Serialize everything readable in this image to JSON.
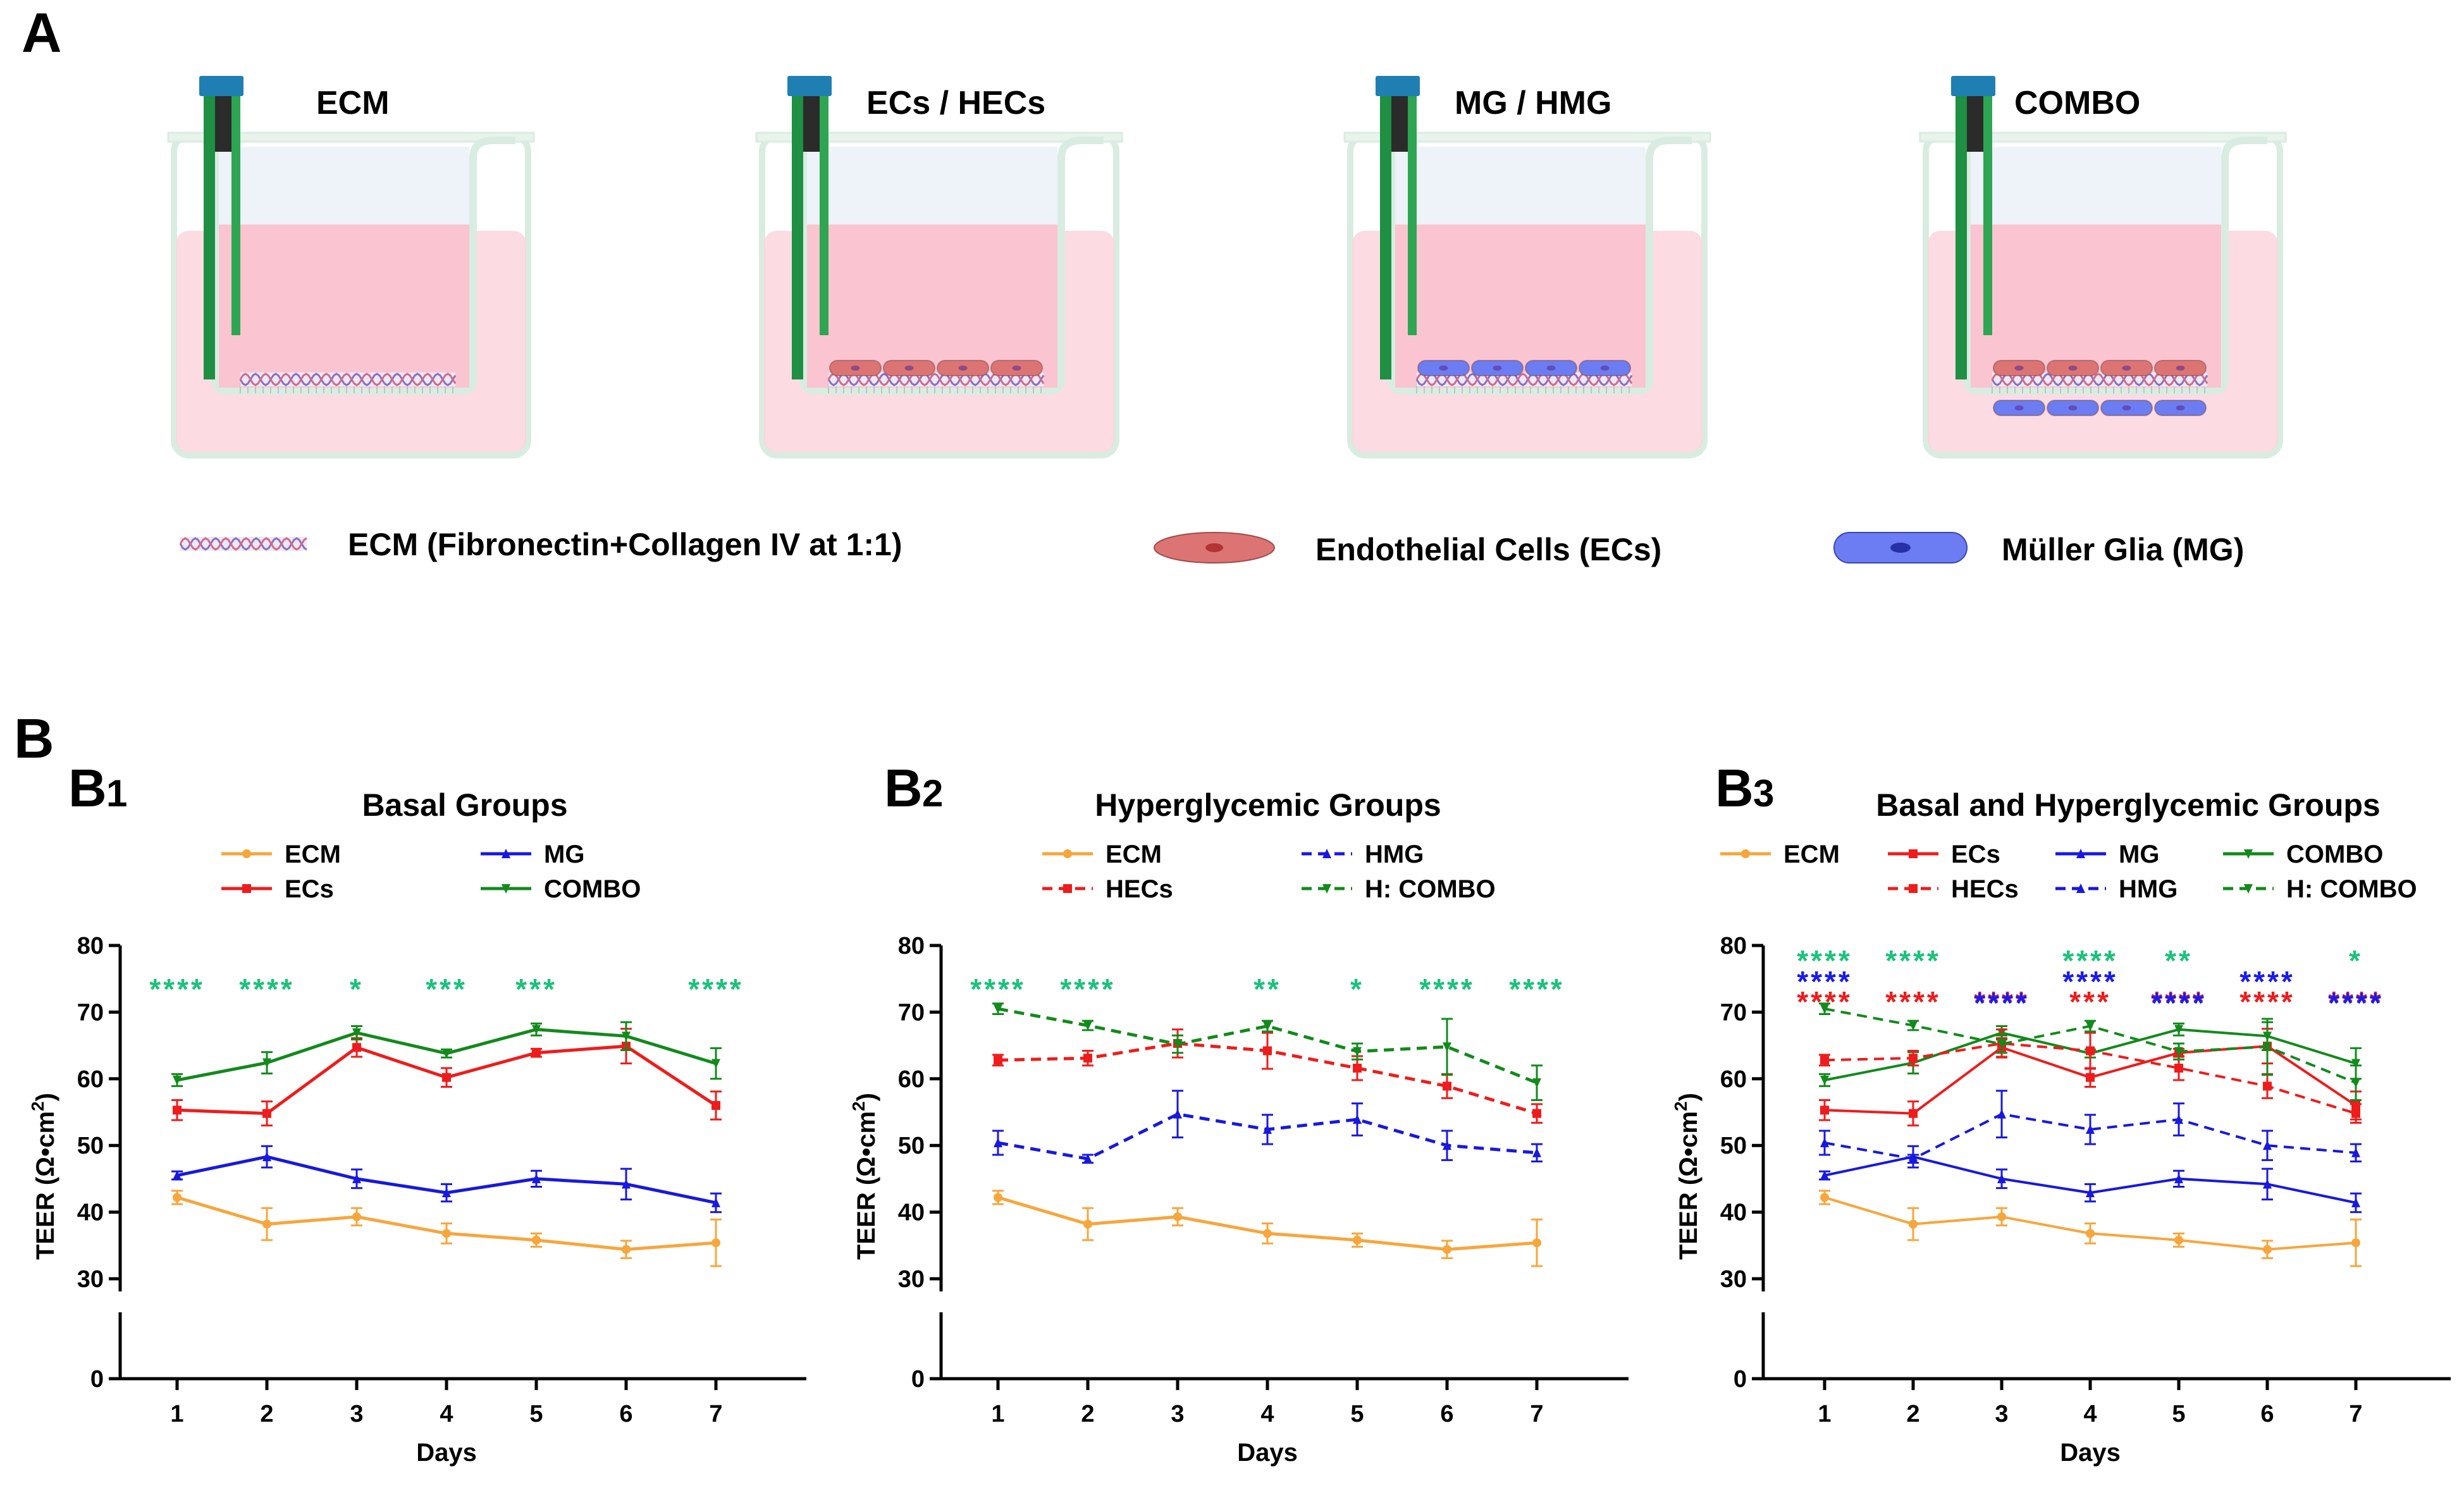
{
  "panel_a": {
    "letter": "A",
    "diagrams": [
      {
        "title": "ECM",
        "cells": "none"
      },
      {
        "title": "ECs / HECs",
        "cells": "top-ec"
      },
      {
        "title": "MG / HMG",
        "cells": "top-mg"
      },
      {
        "title": "COMBO",
        "cells": "both"
      }
    ],
    "legend": {
      "ecm": "ECM (Fibronectin+Collagen IV at 1:1)",
      "ecs": "Endothelial Cells (ECs)",
      "mg": "Müller Glia (MG)"
    },
    "colors": {
      "medium": "#fcd2dc",
      "vessel": "#d9ece2",
      "ec": "#dd7474",
      "mg": "#6c7cf2",
      "ecm1": "#8a6fc0",
      "ecm2": "#d06a8a",
      "electrode": "#1e8f43",
      "cap": "#1f7fb3"
    }
  },
  "panel_b": {
    "letter": "B"
  },
  "chart_data": [
    {
      "type": "line",
      "letter": "B",
      "sub": "1",
      "title": "Basal Groups",
      "x": [
        1,
        2,
        3,
        4,
        5,
        6,
        7
      ],
      "xlabel": "Days",
      "ylabel_main": "TEER (Ω•cm",
      "ylabel_sup": "2",
      "ylabel_end": ")",
      "upper_ticks": [
        30,
        40,
        50,
        60,
        70,
        80
      ],
      "lower_ticks": [
        0
      ],
      "series": [
        {
          "name": "ECM",
          "color": "#f7a63c",
          "dash": "solid",
          "marker": "circle",
          "values": [
            42.2,
            38.2,
            39.3,
            36.8,
            35.8,
            34.4,
            35.4
          ],
          "err": [
            1.0,
            2.4,
            1.3,
            1.5,
            1.0,
            1.3,
            3.5
          ]
        },
        {
          "name": "ECs",
          "color": "#ee1c1c",
          "dash": "solid",
          "marker": "square",
          "values": [
            55.3,
            54.8,
            64.7,
            60.2,
            63.9,
            64.9,
            56.0
          ],
          "err": [
            1.5,
            1.8,
            1.4,
            1.4,
            0.6,
            2.6,
            2.1
          ]
        },
        {
          "name": "MG",
          "color": "#1818e0",
          "dash": "solid",
          "marker": "triangle",
          "values": [
            45.5,
            48.3,
            45.0,
            42.9,
            45.0,
            44.2,
            41.4
          ],
          "err": [
            0.6,
            1.6,
            1.4,
            1.3,
            1.2,
            2.3,
            1.4
          ]
        },
        {
          "name": "COMBO",
          "color": "#128a1c",
          "dash": "solid",
          "marker": "triangle-down",
          "values": [
            59.8,
            62.4,
            66.9,
            63.8,
            67.4,
            66.4,
            62.3
          ],
          "err": [
            0.9,
            1.6,
            1.0,
            0.6,
            0.9,
            2.1,
            2.3
          ]
        }
      ],
      "legend_layout": [
        [
          "ECM",
          "MG"
        ],
        [
          "ECs",
          "COMBO"
        ]
      ],
      "significance": [
        {
          "row": 0,
          "color": "#1bc27b",
          "marks": [
            "****",
            "****",
            "*",
            "***",
            "***",
            "",
            "****"
          ]
        }
      ]
    },
    {
      "type": "line",
      "letter": "B",
      "sub": "2",
      "title": "Hyperglycemic Groups",
      "x": [
        1,
        2,
        3,
        4,
        5,
        6,
        7
      ],
      "xlabel": "Days",
      "ylabel_main": "TEER (Ω•cm",
      "ylabel_sup": "2",
      "ylabel_end": ")",
      "upper_ticks": [
        30,
        40,
        50,
        60,
        70,
        80
      ],
      "lower_ticks": [
        0
      ],
      "series": [
        {
          "name": "ECM",
          "color": "#f7a63c",
          "dash": "solid",
          "marker": "circle",
          "values": [
            42.2,
            38.2,
            39.3,
            36.8,
            35.8,
            34.4,
            35.4
          ],
          "err": [
            1.0,
            2.4,
            1.3,
            1.5,
            1.0,
            1.3,
            3.5
          ]
        },
        {
          "name": "HMG",
          "color": "#1818e0",
          "dash": "dashed",
          "marker": "triangle",
          "values": [
            50.4,
            48.0,
            54.7,
            52.4,
            53.9,
            50.0,
            48.9
          ],
          "err": [
            1.8,
            0.6,
            3.5,
            2.2,
            2.4,
            2.2,
            1.3
          ]
        },
        {
          "name": "HECs",
          "color": "#ee1c1c",
          "dash": "dashed",
          "marker": "square",
          "values": [
            62.8,
            63.1,
            65.3,
            64.2,
            61.6,
            58.9,
            54.8
          ],
          "err": [
            0.8,
            1.1,
            2.1,
            2.7,
            1.8,
            1.8,
            1.4
          ]
        },
        {
          "name": "H: COMBO",
          "color": "#128a1c",
          "dash": "dashed",
          "marker": "triangle-down",
          "values": [
            70.5,
            68.0,
            65.2,
            67.9,
            64.1,
            64.8,
            59.4
          ],
          "err": [
            0.8,
            0.7,
            1.3,
            0.8,
            1.2,
            4.2,
            2.6
          ]
        }
      ],
      "legend_layout": [
        [
          "ECM",
          "HMG"
        ],
        [
          "HECs",
          "H: COMBO"
        ]
      ],
      "significance": [
        {
          "row": 0,
          "color": "#1bc27b",
          "marks": [
            "****",
            "****",
            "",
            "**",
            "*",
            "****",
            "****"
          ]
        }
      ]
    },
    {
      "type": "line",
      "letter": "B",
      "sub": "3",
      "title": "Basal and Hyperglycemic Groups",
      "x": [
        1,
        2,
        3,
        4,
        5,
        6,
        7
      ],
      "xlabel": "Days",
      "ylabel_main": "TEER (Ω•cm",
      "ylabel_sup": "2",
      "ylabel_end": ")",
      "upper_ticks": [
        30,
        40,
        50,
        60,
        70,
        80
      ],
      "lower_ticks": [
        0
      ],
      "series": [
        {
          "name": "ECM",
          "color": "#f7a63c",
          "dash": "solid",
          "marker": "circle",
          "values": [
            42.2,
            38.2,
            39.3,
            36.8,
            35.8,
            34.4,
            35.4
          ],
          "err": [
            1.0,
            2.4,
            1.3,
            1.5,
            1.0,
            1.3,
            3.5
          ]
        },
        {
          "name": "ECs",
          "color": "#ee1c1c",
          "dash": "solid",
          "marker": "square",
          "values": [
            55.3,
            54.8,
            64.7,
            60.2,
            63.9,
            64.9,
            56.0
          ],
          "err": [
            1.5,
            1.8,
            1.4,
            1.4,
            0.6,
            2.6,
            2.1
          ]
        },
        {
          "name": "MG",
          "color": "#1818e0",
          "dash": "solid",
          "marker": "triangle",
          "values": [
            45.5,
            48.3,
            45.0,
            42.9,
            45.0,
            44.2,
            41.4
          ],
          "err": [
            0.6,
            1.6,
            1.4,
            1.3,
            1.2,
            2.3,
            1.4
          ]
        },
        {
          "name": "COMBO",
          "color": "#128a1c",
          "dash": "solid",
          "marker": "triangle-down",
          "values": [
            59.8,
            62.4,
            66.9,
            63.8,
            67.4,
            66.4,
            62.3
          ],
          "err": [
            0.9,
            1.6,
            1.0,
            0.6,
            0.9,
            2.1,
            2.3
          ]
        },
        {
          "name": "HECs",
          "color": "#ee1c1c",
          "dash": "dashed",
          "marker": "square",
          "values": [
            62.8,
            63.1,
            65.3,
            64.2,
            61.6,
            58.9,
            54.8
          ],
          "err": [
            0.8,
            1.1,
            2.1,
            2.7,
            1.8,
            1.8,
            1.4
          ]
        },
        {
          "name": "HMG",
          "color": "#1818e0",
          "dash": "dashed",
          "marker": "triangle",
          "values": [
            50.4,
            48.0,
            54.7,
            52.4,
            53.9,
            50.0,
            48.9
          ],
          "err": [
            1.8,
            0.6,
            3.5,
            2.2,
            2.4,
            2.2,
            1.3
          ]
        },
        {
          "name": "H: COMBO",
          "color": "#128a1c",
          "dash": "dashed",
          "marker": "triangle-down",
          "values": [
            70.5,
            68.0,
            65.2,
            67.9,
            64.1,
            64.8,
            59.4
          ],
          "err": [
            0.8,
            0.7,
            1.3,
            0.8,
            1.2,
            4.2,
            2.6
          ]
        }
      ],
      "legend_layout": [
        [
          "ECM",
          "ECs",
          "MG",
          "COMBO"
        ],
        [
          "",
          "HECs",
          "HMG",
          "H: COMBO"
        ]
      ],
      "significance": [
        {
          "row": 0,
          "color": "#1bc27b",
          "marks": [
            "****",
            "****",
            "",
            "****",
            "**",
            "",
            "*"
          ]
        },
        {
          "row": 1,
          "color": "#1a1af0",
          "marks": [
            "****",
            "",
            "",
            "****",
            "",
            "****",
            ""
          ]
        },
        {
          "row": 2,
          "color": "#ee1c1c",
          "marks": [
            "****",
            "****",
            "****",
            "***",
            "****",
            "****",
            "****"
          ]
        }
      ],
      "significance_row_colors": [
        "#1bc27b",
        "#1a1af0",
        "#ee1c1c"
      ],
      "significance_blue_row2": [
        "",
        "",
        "****",
        "",
        "****",
        "",
        "****"
      ]
    }
  ]
}
